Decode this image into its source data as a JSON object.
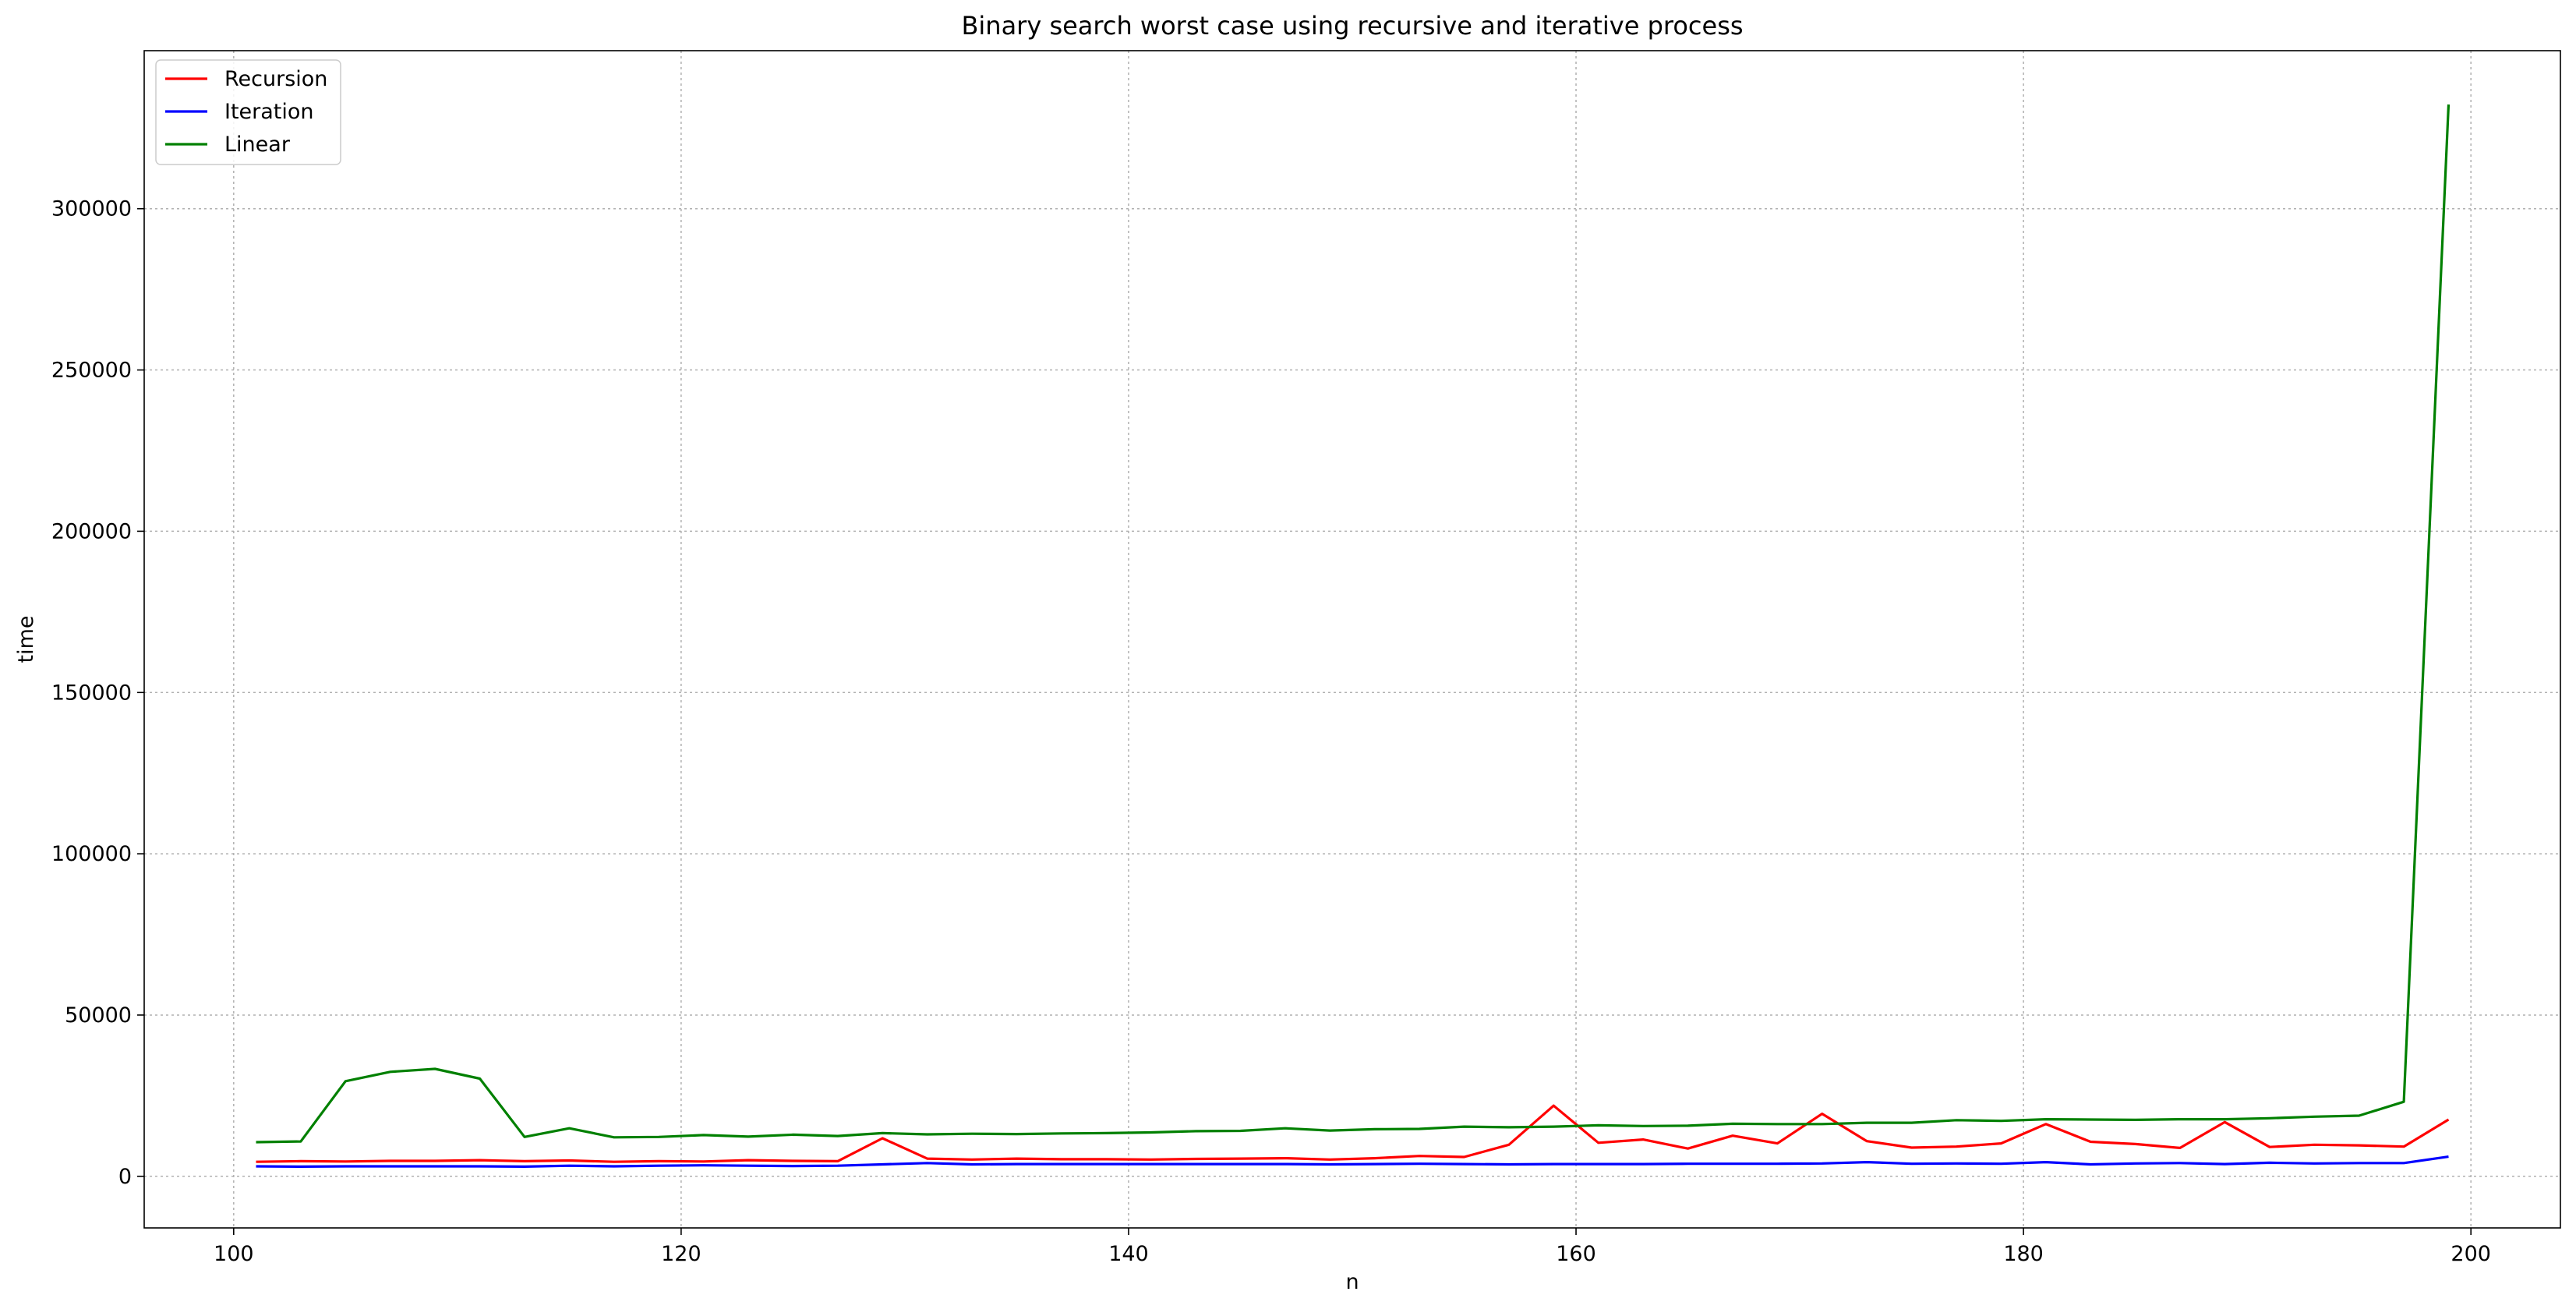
{
  "chart_data": {
    "type": "line",
    "title": "Binary search worst case using recursive and iterative process",
    "xlabel": "n",
    "ylabel": "time",
    "xlim": [
      96,
      204
    ],
    "ylim": [
      -16000,
      349000
    ],
    "xticks": [
      100,
      120,
      140,
      160,
      180,
      200
    ],
    "yticks": [
      0,
      50000,
      100000,
      150000,
      200000,
      250000,
      300000
    ],
    "grid": true,
    "legend_position": "top-left",
    "x": [
      101,
      103,
      105,
      107,
      109,
      111,
      113,
      115,
      117,
      119,
      121,
      123,
      125,
      127,
      129,
      131,
      133,
      135,
      137,
      139,
      141,
      143,
      145,
      147,
      149,
      151,
      153,
      155,
      157,
      159,
      161,
      163,
      165,
      167,
      169,
      171,
      173,
      175,
      177,
      179,
      181,
      183,
      185,
      187,
      189,
      191,
      193,
      195,
      197,
      199
    ],
    "series": [
      {
        "name": "Recursion",
        "color": "#ff0000",
        "values": [
          4500,
          4700,
          4600,
          4800,
          4800,
          5000,
          4700,
          4900,
          4500,
          4700,
          4600,
          5000,
          4800,
          4700,
          11800,
          5500,
          5200,
          5500,
          5300,
          5300,
          5200,
          5400,
          5500,
          5600,
          5200,
          5600,
          6300,
          6000,
          9800,
          21900,
          10400,
          11400,
          8600,
          12600,
          10200,
          19400,
          10900,
          8900,
          9200,
          10200,
          16200,
          10700,
          10000,
          8800,
          16800,
          9100,
          9800,
          9600,
          9200,
          17600
        ]
      },
      {
        "name": "Iteration",
        "color": "#0000ff",
        "values": [
          3100,
          3000,
          3100,
          3100,
          3100,
          3100,
          3000,
          3300,
          3100,
          3300,
          3400,
          3300,
          3200,
          3300,
          3700,
          4100,
          3700,
          3800,
          3800,
          3800,
          3800,
          3800,
          3800,
          3800,
          3700,
          3800,
          3900,
          3800,
          3700,
          3800,
          3800,
          3800,
          3900,
          3900,
          3900,
          4000,
          4400,
          3900,
          4000,
          3900,
          4400,
          3700,
          4000,
          4100,
          3800,
          4200,
          4000,
          4100,
          4100,
          6100
        ]
      },
      {
        "name": "Linear",
        "color": "#008000",
        "values": [
          10600,
          10800,
          29500,
          32400,
          33300,
          30300,
          12200,
          14900,
          12100,
          12200,
          12800,
          12300,
          12900,
          12500,
          13400,
          13000,
          13200,
          13100,
          13300,
          13400,
          13600,
          14000,
          14100,
          14900,
          14200,
          14600,
          14700,
          15400,
          15200,
          15400,
          15800,
          15600,
          15700,
          16300,
          16200,
          16200,
          16600,
          16600,
          17400,
          17200,
          17700,
          17600,
          17500,
          17700,
          17700,
          18000,
          18500,
          18800,
          23100,
          332300
        ]
      }
    ]
  }
}
